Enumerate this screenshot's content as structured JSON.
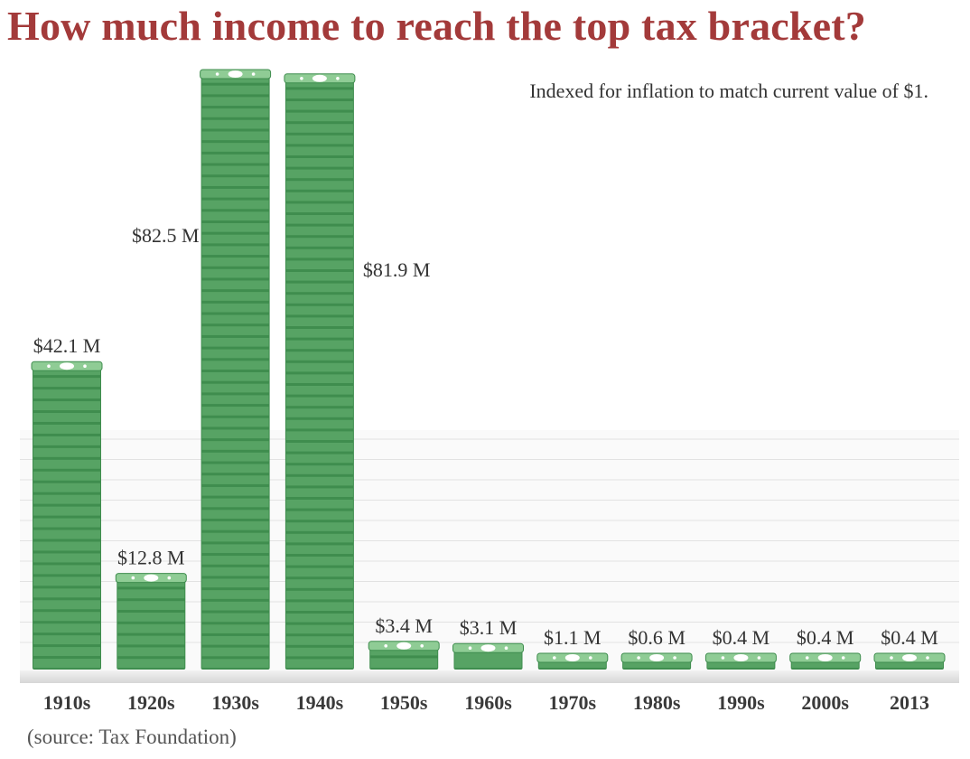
{
  "title": "How much income to reach the top tax bracket?",
  "subtitle": "Indexed for inflation to match current value of $1.",
  "source": "(source: Tax Foundation)",
  "colors": {
    "title": "#a33a3a",
    "bar_dark": "#3f8d4e",
    "bar_light": "#6cb677",
    "bar_top": "#8fcc95"
  },
  "chart_data": {
    "type": "bar",
    "title": "How much income to reach the top tax bracket?",
    "subtitle": "Indexed for inflation to match current value of $1.",
    "categories": [
      "1910s",
      "1920s",
      "1930s",
      "1940s",
      "1950s",
      "1960s",
      "1970s",
      "1980s",
      "1990s",
      "2000s",
      "2013"
    ],
    "values": [
      42.1,
      12.8,
      82.5,
      81.9,
      3.4,
      3.1,
      1.1,
      0.6,
      0.4,
      0.4,
      0.4
    ],
    "data_labels": [
      "$42.1 M",
      "$12.8 M",
      "$82.5 M",
      "$81.9 M",
      "$3.4 M",
      "$3.1 M",
      "$1.1 M",
      "$0.6 M",
      "$0.4 M",
      "$0.4 M",
      "$0.4 M"
    ],
    "xlabel": "",
    "ylabel": "",
    "unit": "$ millions",
    "grid": false,
    "legend": "none"
  }
}
